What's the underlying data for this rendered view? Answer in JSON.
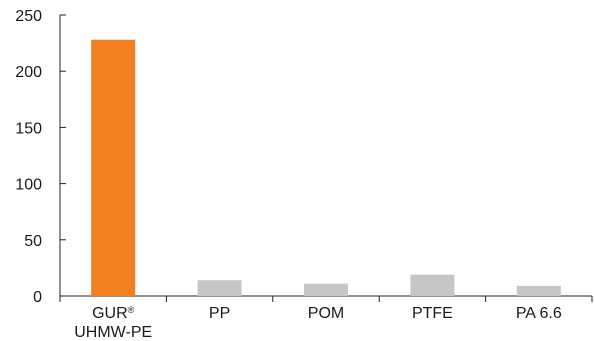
{
  "chart_data": {
    "type": "bar",
    "categories": [
      [
        "GUR®",
        "UHMW-PE"
      ],
      [
        "PP"
      ],
      [
        "POM"
      ],
      [
        "PTFE"
      ],
      [
        "PA 6.6"
      ]
    ],
    "values": [
      228,
      14,
      11,
      19,
      9
    ],
    "colors": [
      "#f08020",
      "#c6c6c6",
      "#c6c6c6",
      "#c6c6c6",
      "#c6c6c6"
    ],
    "title": "",
    "xlabel": "",
    "ylabel": "",
    "ylim": [
      0,
      250
    ],
    "yticks": [
      0,
      50,
      100,
      150,
      200,
      250
    ],
    "grid": false,
    "legend": "none"
  }
}
